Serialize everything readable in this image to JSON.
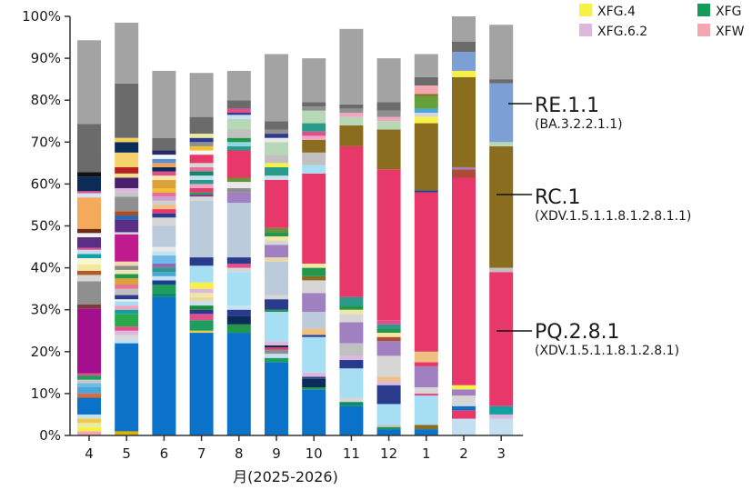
{
  "chart_data": {
    "type": "bar",
    "stacked": true,
    "xlabel": "月(2025-2026)",
    "ylabel": "",
    "ylim": [
      0,
      100
    ],
    "categories": [
      "4",
      "5",
      "6",
      "7",
      "8",
      "9",
      "10",
      "11",
      "12",
      "1",
      "2",
      "3"
    ],
    "y_ticks": [
      "0%",
      "10%",
      "20%",
      "30%",
      "40%",
      "50%",
      "60%",
      "70%",
      "80%",
      "90%",
      "100%"
    ],
    "legend": [
      {
        "name": "XFG.4",
        "color": "#f7f046"
      },
      {
        "name": "XFG",
        "color": "#159a5a"
      },
      {
        "name": "XFG.6.2",
        "color": "#dcb8dc"
      },
      {
        "name": "XFW",
        "color": "#f4a7ae"
      }
    ],
    "annotations": [
      {
        "label": "RE.1.1",
        "sublabel": "(BA.3.2.2.1.1)"
      },
      {
        "label": "RC.1",
        "sublabel": "(XDV.1.5.1.1.8.1.2.8.1.1)"
      },
      {
        "label": "PQ.2.8.1",
        "sublabel": "(XDV.1.5.1.1.8.1.2.8.1)"
      }
    ],
    "series": [
      {
        "name": "PQ.2.8.1",
        "color": "#e8386a",
        "values": [
          0,
          0,
          0,
          0,
          0,
          0,
          0,
          0,
          0,
          0,
          0,
          0
        ]
      },
      {
        "color": "#cfcfcf",
        "values": [
          0.5,
          0,
          0,
          0,
          0,
          0,
          0,
          0,
          0,
          0,
          0,
          0
        ]
      },
      {
        "color": "#0b72c9",
        "values": [
          0,
          0,
          0,
          0,
          0,
          0,
          0,
          0,
          0,
          0,
          0,
          0
        ]
      }
    ],
    "bars": [
      [
        [
          "#f4a7ae",
          1
        ],
        [
          "#f7f046",
          1
        ],
        [
          "#eaeaa0",
          1
        ],
        [
          "#f3c94a",
          1
        ],
        [
          "#c6e2f0",
          1
        ],
        [
          "#0b72c9",
          4
        ],
        [
          "#dc6a3c",
          1
        ],
        [
          "#4aa6d9",
          1.5
        ],
        [
          "#6db9e8",
          1
        ],
        [
          "#c8c8c8",
          0.8
        ],
        [
          "#1f9d5c",
          1
        ],
        [
          "#e24d8b",
          0.5
        ],
        [
          "#a40f8d",
          15.5
        ],
        [
          "#7a3b3b",
          1
        ],
        [
          "#8f8f8f",
          5.5
        ],
        [
          "#d7d7d7",
          1.5
        ],
        [
          "#b35a2b",
          1
        ],
        [
          "#f2e6a0",
          1.5
        ],
        [
          "#f6f6d0",
          1.5
        ],
        [
          "#11a0a8",
          1
        ],
        [
          "#c4dff2",
          1
        ],
        [
          "#e24d8b",
          0.5
        ],
        [
          "#5b2e86",
          2.5
        ],
        [
          "#f0f0f0",
          1
        ],
        [
          "#6b2a11",
          1
        ],
        [
          "#f5a95a",
          7.5
        ],
        [
          "#d3e4f4",
          1
        ],
        [
          "#e24d8b",
          0.5
        ],
        [
          "#0b2c56",
          3.5
        ],
        [
          "#111111",
          1
        ],
        [
          "#6b6b6b",
          11.5
        ],
        [
          "#a3a3a3",
          20
        ]
      ],
      [
        [
          "#d8b400",
          1
        ],
        [
          "#0b72c9",
          21
        ],
        [
          "#c4dff2",
          1
        ],
        [
          "#d8d8d8",
          1
        ],
        [
          "#dcb8dc",
          1
        ],
        [
          "#e24d8b",
          1
        ],
        [
          "#2aa84a",
          3
        ],
        [
          "#12a0a0",
          1
        ],
        [
          "#f0a5c0",
          1
        ],
        [
          "#a6dff4",
          1
        ],
        [
          "#f0f0f0",
          0.5
        ],
        [
          "#2a3a8c",
          1
        ],
        [
          "#c0c0c0",
          1.5
        ],
        [
          "#e86f9a",
          1
        ],
        [
          "#dca23c",
          1.5
        ],
        [
          "#22964a",
          1
        ],
        [
          "#e8e8b0",
          1
        ],
        [
          "#8b8b8b",
          1
        ],
        [
          "#f0d7b0",
          1
        ],
        [
          "#c01a8f",
          6.5
        ],
        [
          "#d6d6d6",
          0.5
        ],
        [
          "#5b2e86",
          3
        ],
        [
          "#1f6bb8",
          1
        ],
        [
          "#b04a1f",
          1
        ],
        [
          "#8f8f8f",
          3.5
        ],
        [
          "#c6c6c6",
          1
        ],
        [
          "#dcb8dc",
          1
        ],
        [
          "#4a1f6e",
          2.5
        ],
        [
          "#efe08a",
          1
        ],
        [
          "#b82020",
          1.5
        ],
        [
          "#f5d26b",
          3.5
        ],
        [
          "#0b2c56",
          2.5
        ],
        [
          "#f2d35a",
          1
        ],
        [
          "#6b6b6b",
          13
        ],
        [
          "#a3a3a3",
          14.5
        ]
      ],
      [
        [
          "#0b72c9",
          33
        ],
        [
          "#0c8a6a",
          1
        ],
        [
          "#1f9d5c",
          2
        ],
        [
          "#1b3b8e",
          1
        ],
        [
          "#c4dff2",
          1
        ],
        [
          "#4aa6d9",
          1
        ],
        [
          "#2a9a8a",
          1
        ],
        [
          "#8b6bb2",
          1
        ],
        [
          "#6db9e8",
          2
        ],
        [
          "#c6e2f0",
          1
        ],
        [
          "#e9e9e9",
          1
        ],
        [
          "#bccbdc",
          5
        ],
        [
          "#d6d6d6",
          2
        ],
        [
          "#2a3a8c",
          1
        ],
        [
          "#e8386a",
          1
        ],
        [
          "#f0c080",
          1
        ],
        [
          "#cfcfcf",
          1
        ],
        [
          "#c7a0d0",
          1
        ],
        [
          "#e86f9a",
          1
        ],
        [
          "#f2c12e",
          1
        ],
        [
          "#dca23c",
          2
        ],
        [
          "#f3e8a8",
          1
        ],
        [
          "#e24d8b",
          1
        ],
        [
          "#0b2c56",
          1
        ],
        [
          "#f0a060",
          1
        ],
        [
          "#5b8fd0",
          1
        ],
        [
          "#f5f5f5",
          1
        ],
        [
          "#2a2a6a",
          1
        ],
        [
          "#6b6b6b",
          3
        ],
        [
          "#a3a3a3",
          16
        ]
      ],
      [
        [
          "#0b72c9",
          24.5
        ],
        [
          "#f3c94a",
          0.5
        ],
        [
          "#1f9d5c",
          2.5
        ],
        [
          "#e24d8b",
          1.5
        ],
        [
          "#2a3a8c",
          1
        ],
        [
          "#1b8a3a",
          1
        ],
        [
          "#c6e2f0",
          1
        ],
        [
          "#e9d7a6",
          1
        ],
        [
          "#f2e6a0",
          1
        ],
        [
          "#dcb8dc",
          1
        ],
        [
          "#f7f046",
          1.5
        ],
        [
          "#a6dff4",
          4
        ],
        [
          "#2a3a8c",
          2
        ],
        [
          "#bccbdc",
          13.5
        ],
        [
          "#d6d6d6",
          1
        ],
        [
          "#8b3a8b",
          0.5
        ],
        [
          "#1f9d5c",
          0.5
        ],
        [
          "#e8386a",
          1
        ],
        [
          "#f0a5c0",
          1
        ],
        [
          "#2a9a8a",
          1
        ],
        [
          "#c4dff2",
          1
        ],
        [
          "#0c8a6a",
          1
        ],
        [
          "#e86f9a",
          1
        ],
        [
          "#d6d6d6",
          1
        ],
        [
          "#e8386a",
          2
        ],
        [
          "#f5f5f5",
          1
        ],
        [
          "#f2c12e",
          1
        ],
        [
          "#8f8f8f",
          1
        ],
        [
          "#2a3a8c",
          1
        ],
        [
          "#eaeaa0",
          1
        ],
        [
          "#6b6b6b",
          4
        ],
        [
          "#a3a3a3",
          10.5
        ]
      ],
      [
        [
          "#0b72c9",
          24.5
        ],
        [
          "#22964a",
          2
        ],
        [
          "#0b2c56",
          2
        ],
        [
          "#2a3a8c",
          1.5
        ],
        [
          "#c6e2f0",
          1
        ],
        [
          "#a6dff4",
          8
        ],
        [
          "#d6d6d6",
          1
        ],
        [
          "#e24d8b",
          1
        ],
        [
          "#2a3a8c",
          1.5
        ],
        [
          "#bccbdc",
          13
        ],
        [
          "#a080c0",
          2.5
        ],
        [
          "#8f8f8f",
          1
        ],
        [
          "#e9e9e9",
          1.5
        ],
        [
          "#6b8f3a",
          1
        ],
        [
          "#e8386a",
          6.5
        ],
        [
          "#2a9a8a",
          1
        ],
        [
          "#8fd6e6",
          1
        ],
        [
          "#22964a",
          1
        ],
        [
          "#c0c0c0",
          2
        ],
        [
          "#b7d8b7",
          2.5
        ],
        [
          "#c6e2f0",
          1
        ],
        [
          "#2a3a8c",
          0.5
        ],
        [
          "#e24d8b",
          1
        ],
        [
          "#6b6b6b",
          2
        ],
        [
          "#a3a3a3",
          7
        ]
      ],
      [
        [
          "#0b72c9",
          17.5
        ],
        [
          "#1f9d5c",
          1
        ],
        [
          "#c4dff2",
          1
        ],
        [
          "#8f8f8f",
          1
        ],
        [
          "#e8386a",
          0.5
        ],
        [
          "#0b2c56",
          0.5
        ],
        [
          "#dcb8dc",
          1
        ],
        [
          "#a6dff4",
          7
        ],
        [
          "#22964a",
          0.5
        ],
        [
          "#2a3a8c",
          2.5
        ],
        [
          "#d6d6d6",
          1
        ],
        [
          "#bccbdc",
          8
        ],
        [
          "#e9d7a6",
          1
        ],
        [
          "#a080c0",
          3
        ],
        [
          "#d6d6d6",
          1
        ],
        [
          "#f2e6a0",
          1
        ],
        [
          "#22964a",
          1
        ],
        [
          "#6b8f3a",
          1
        ],
        [
          "#e8386a",
          11.5
        ],
        [
          "#c6e2f0",
          1
        ],
        [
          "#2a9a8a",
          2
        ],
        [
          "#f7f046",
          1
        ],
        [
          "#c0c0c0",
          2
        ],
        [
          "#b7d8b7",
          3
        ],
        [
          "#e9e9e9",
          1
        ],
        [
          "#2a3a8c",
          1
        ],
        [
          "#8f8f8f",
          1
        ],
        [
          "#6b6b6b",
          2
        ],
        [
          "#a3a3a3",
          16
        ]
      ],
      [
        [
          "#0b72c9",
          11
        ],
        [
          "#22964a",
          0.5
        ],
        [
          "#0b2c56",
          2
        ],
        [
          "#2a3a8c",
          0.5
        ],
        [
          "#dcb8dc",
          1
        ],
        [
          "#a6dff4",
          8.5
        ],
        [
          "#2a3a8c",
          0.5
        ],
        [
          "#f0c080",
          1.5
        ],
        [
          "#bccbdc",
          4
        ],
        [
          "#a080c0",
          4.5
        ],
        [
          "#d6d6d6",
          3
        ],
        [
          "#8a6d1f",
          1
        ],
        [
          "#22964a",
          2
        ],
        [
          "#f2e6a0",
          1
        ],
        [
          "#e8386a",
          21.5
        ],
        [
          "#a6dff4",
          2
        ],
        [
          "#c0c0c0",
          3
        ],
        [
          "#8a6d1f",
          3
        ],
        [
          "#f0a5c0",
          1
        ],
        [
          "#e24d8b",
          1
        ],
        [
          "#2a9a8a",
          2
        ],
        [
          "#b7d8b7",
          3
        ],
        [
          "#8f8f8f",
          1
        ],
        [
          "#6b6b6b",
          1
        ],
        [
          "#a3a3a3",
          10.5
        ]
      ],
      [
        [
          "#0b72c9",
          7
        ],
        [
          "#0c8a6a",
          1
        ],
        [
          "#d6d6d6",
          1
        ],
        [
          "#a6dff4",
          7
        ],
        [
          "#2a3a8c",
          2
        ],
        [
          "#dcb8dc",
          1
        ],
        [
          "#c0c0c0",
          3
        ],
        [
          "#a080c0",
          5
        ],
        [
          "#d6d6d6",
          2
        ],
        [
          "#f2e6a0",
          1
        ],
        [
          "#22964a",
          1
        ],
        [
          "#2a9a8a",
          2
        ],
        [
          "#e8386a",
          36
        ],
        [
          "#8a6d1f",
          5
        ],
        [
          "#b7d8b7",
          2
        ],
        [
          "#f0a5c0",
          1
        ],
        [
          "#8f8f8f",
          1
        ],
        [
          "#6b6b6b",
          1
        ],
        [
          "#a3a3a3",
          18
        ]
      ],
      [
        [
          "#0b72c9",
          1.5
        ],
        [
          "#22964a",
          0.5
        ],
        [
          "#c0c0c0",
          0.5
        ],
        [
          "#a6dff4",
          5
        ],
        [
          "#2a3a8c",
          4.5
        ],
        [
          "#dcb8dc",
          1
        ],
        [
          "#f0c080",
          1
        ],
        [
          "#d6d6d6",
          5
        ],
        [
          "#a080c0",
          3.5
        ],
        [
          "#b04a3a",
          1
        ],
        [
          "#f2e6a0",
          1
        ],
        [
          "#22964a",
          1
        ],
        [
          "#2a9a8a",
          1
        ],
        [
          "#e24d8b",
          1
        ],
        [
          "#e8386a",
          36
        ],
        [
          "#8a6d1f",
          9.5
        ],
        [
          "#b7d8b7",
          2
        ],
        [
          "#f0a5c0",
          1
        ],
        [
          "#8f8f8f",
          1.5
        ],
        [
          "#6b6b6b",
          2
        ],
        [
          "#a3a3a3",
          10.5
        ]
      ],
      [
        [
          "#0b72c9",
          1.5
        ],
        [
          "#8a6d1f",
          1
        ],
        [
          "#a6dff4",
          7
        ],
        [
          "#e24d8b",
          0.5
        ],
        [
          "#d6d6d6",
          1.5
        ],
        [
          "#a080c0",
          5
        ],
        [
          "#e8386a",
          1
        ],
        [
          "#f0c080",
          2.5
        ],
        [
          "#e8386a",
          38
        ],
        [
          "#2a3a8c",
          0.5
        ],
        [
          "#8a6d1f",
          16
        ],
        [
          "#f7f046",
          1.5
        ],
        [
          "#d6d6d6",
          1
        ],
        [
          "#4aa6d9",
          1
        ],
        [
          "#67a03a",
          3
        ],
        [
          "#8a6d1f",
          0.5
        ],
        [
          "#f4a7ae",
          2
        ],
        [
          "#6b6b6b",
          2
        ],
        [
          "#a3a3a3",
          5.5
        ]
      ],
      [
        [
          "#c4dff2",
          4
        ],
        [
          "#e8386a",
          2
        ],
        [
          "#0b72c9",
          1
        ],
        [
          "#d6d6d6",
          2.5
        ],
        [
          "#a080c0",
          1.5
        ],
        [
          "#f7f046",
          1
        ],
        [
          "#e8386a",
          49.5
        ],
        [
          "#b04a3a",
          2
        ],
        [
          "#a080c0",
          0.5
        ],
        [
          "#8a6d1f",
          21.5
        ],
        [
          "#f7f046",
          1.5
        ],
        [
          "#7c9fd6",
          4.5
        ],
        [
          "#6b6b6b",
          2.5
        ],
        [
          "#a3a3a3",
          6
        ]
      ],
      [
        [
          "#c4dff2",
          4
        ],
        [
          "#dcb8dc",
          1
        ],
        [
          "#12a0a0",
          2
        ],
        [
          "#e8386a",
          32
        ],
        [
          "#c0c0c0",
          1
        ],
        [
          "#8a6d1f",
          29
        ],
        [
          "#b7d8b7",
          1
        ],
        [
          "#7c9fd6",
          14
        ],
        [
          "#6b6b6b",
          1
        ],
        [
          "#a3a3a3",
          13
        ]
      ]
    ]
  }
}
